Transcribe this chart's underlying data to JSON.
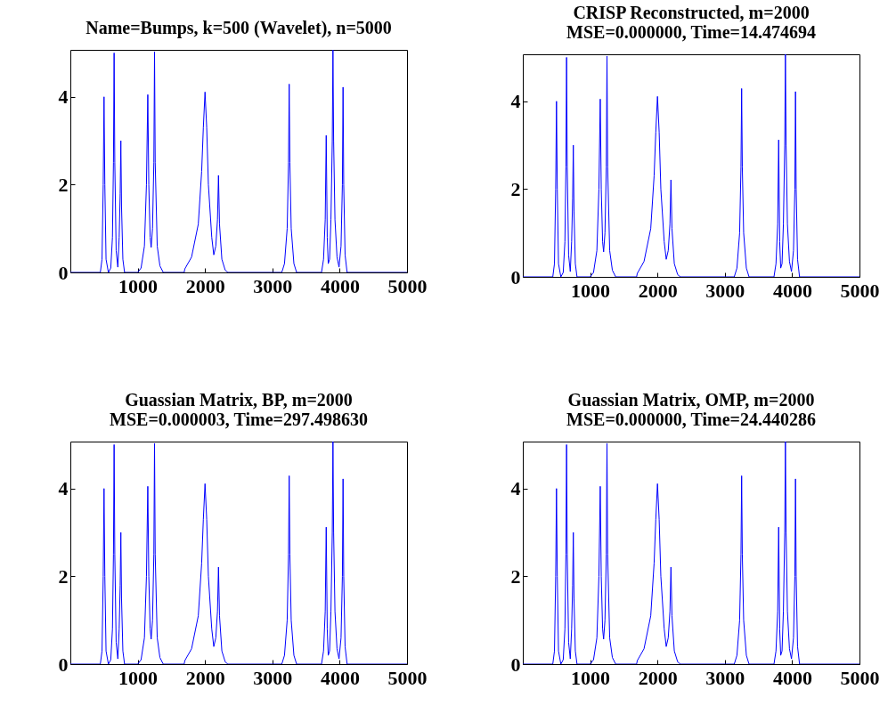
{
  "chart_data": [
    {
      "type": "line",
      "title": "Name=Bumps, k=500 (Wavelet), n=5000",
      "xlim": [
        0,
        5000
      ],
      "xticks": [
        1000,
        2000,
        3000,
        4000,
        5000
      ],
      "ylim": [
        0,
        5.07
      ],
      "yticks": [
        0,
        2,
        4
      ],
      "grid": false,
      "x": [
        0,
        445,
        470,
        488,
        500,
        512,
        530,
        565,
        600,
        625,
        640,
        650,
        660,
        680,
        705,
        725,
        740,
        750,
        760,
        780,
        805,
        1000,
        1050,
        1100,
        1130,
        1150,
        1165,
        1185,
        1200,
        1220,
        1240,
        1250,
        1260,
        1290,
        1330,
        1380,
        1690,
        1700,
        1800,
        1900,
        1950,
        1975,
        2000,
        2025,
        2050,
        2100,
        2130,
        2160,
        2185,
        2200,
        2215,
        2250,
        2300,
        2340,
        3140,
        3180,
        3220,
        3240,
        3250,
        3260,
        3280,
        3320,
        3360,
        3730,
        3760,
        3785,
        3800,
        3815,
        3830,
        3850,
        3870,
        3890,
        3900,
        3910,
        3930,
        3960,
        3990,
        4020,
        4040,
        4050,
        4060,
        4080,
        4110,
        5000
      ],
      "series": [
        {
          "color": "#0000ff",
          "values": [
            0,
            0,
            0.3,
            2.0,
            4.0,
            2.0,
            0.3,
            0,
            0.1,
            0.8,
            2.5,
            5.0,
            2.5,
            0.5,
            0.12,
            0.8,
            1.8,
            3.0,
            1.5,
            0.3,
            0,
            0,
            0.1,
            0.6,
            2.0,
            4.05,
            2.0,
            0.8,
            0.57,
            1.0,
            2.5,
            5.03,
            2.5,
            0.6,
            0.15,
            0,
            0,
            0.08,
            0.35,
            1.1,
            2.3,
            3.3,
            4.11,
            3.3,
            2.0,
            0.8,
            0.4,
            0.6,
            1.2,
            2.21,
            1.1,
            0.3,
            0.05,
            0,
            0,
            0.2,
            1.0,
            2.5,
            4.29,
            2.5,
            1.0,
            0.2,
            0,
            0,
            0.3,
            1.2,
            3.12,
            0.8,
            0.2,
            0.3,
            1.2,
            3.0,
            5.07,
            3.0,
            1.2,
            0.35,
            0.12,
            0.6,
            2.0,
            4.22,
            2.0,
            0.4,
            0,
            0
          ]
        }
      ]
    },
    {
      "type": "line",
      "title": "CRISP Reconstructed, m=2000",
      "subtitle": "MSE=0.000000, Time=14.474694",
      "xlim": [
        0,
        5000
      ],
      "xticks": [
        1000,
        2000,
        3000,
        4000,
        5000
      ],
      "ylim": [
        0,
        5.07
      ],
      "yticks": [
        0,
        2,
        4
      ],
      "grid": false,
      "x": [
        0,
        445,
        470,
        488,
        500,
        512,
        530,
        565,
        600,
        625,
        640,
        650,
        660,
        680,
        705,
        725,
        740,
        750,
        760,
        780,
        805,
        1000,
        1050,
        1100,
        1130,
        1150,
        1165,
        1185,
        1200,
        1220,
        1240,
        1250,
        1260,
        1290,
        1330,
        1380,
        1690,
        1700,
        1800,
        1900,
        1950,
        1975,
        2000,
        2025,
        2050,
        2100,
        2130,
        2160,
        2185,
        2200,
        2215,
        2250,
        2300,
        2340,
        3140,
        3180,
        3220,
        3240,
        3250,
        3260,
        3280,
        3320,
        3360,
        3730,
        3760,
        3785,
        3800,
        3815,
        3830,
        3850,
        3870,
        3890,
        3900,
        3910,
        3930,
        3960,
        3990,
        4020,
        4040,
        4050,
        4060,
        4080,
        4110,
        5000
      ],
      "series": [
        {
          "color": "#0000ff",
          "values": [
            0,
            0,
            0.3,
            2.0,
            4.0,
            2.0,
            0.3,
            0,
            0.1,
            0.8,
            2.5,
            5.0,
            2.5,
            0.5,
            0.12,
            0.8,
            1.8,
            3.0,
            1.5,
            0.3,
            0,
            0,
            0.1,
            0.6,
            2.0,
            4.05,
            2.0,
            0.8,
            0.57,
            1.0,
            2.5,
            5.03,
            2.5,
            0.6,
            0.15,
            0,
            0,
            0.08,
            0.35,
            1.1,
            2.3,
            3.3,
            4.11,
            3.3,
            2.0,
            0.8,
            0.4,
            0.6,
            1.2,
            2.21,
            1.1,
            0.3,
            0.05,
            0,
            0,
            0.2,
            1.0,
            2.5,
            4.29,
            2.5,
            1.0,
            0.2,
            0,
            0,
            0.3,
            1.2,
            3.12,
            0.8,
            0.2,
            0.3,
            1.2,
            3.0,
            5.07,
            3.0,
            1.2,
            0.35,
            0.12,
            0.6,
            2.0,
            4.22,
            2.0,
            0.4,
            0,
            0
          ]
        }
      ]
    },
    {
      "type": "line",
      "title": "Guassian Matrix, BP, m=2000",
      "subtitle": "MSE=0.000003, Time=297.498630",
      "xlim": [
        0,
        5000
      ],
      "xticks": [
        1000,
        2000,
        3000,
        4000,
        5000
      ],
      "ylim": [
        0,
        5.07
      ],
      "yticks": [
        0,
        2,
        4
      ],
      "grid": false,
      "x": [
        0,
        445,
        470,
        488,
        500,
        512,
        530,
        565,
        600,
        625,
        640,
        650,
        660,
        680,
        705,
        725,
        740,
        750,
        760,
        780,
        805,
        1000,
        1050,
        1100,
        1130,
        1150,
        1165,
        1185,
        1200,
        1220,
        1240,
        1250,
        1260,
        1290,
        1330,
        1380,
        1690,
        1700,
        1800,
        1900,
        1950,
        1975,
        2000,
        2025,
        2050,
        2100,
        2130,
        2160,
        2185,
        2200,
        2215,
        2250,
        2300,
        2340,
        3140,
        3180,
        3220,
        3240,
        3250,
        3260,
        3280,
        3320,
        3360,
        3730,
        3760,
        3785,
        3800,
        3815,
        3830,
        3850,
        3870,
        3890,
        3900,
        3910,
        3930,
        3960,
        3990,
        4020,
        4040,
        4050,
        4060,
        4080,
        4110,
        5000
      ],
      "series": [
        {
          "color": "#0000ff",
          "values": [
            0,
            0,
            0.3,
            2.0,
            4.0,
            2.0,
            0.3,
            0,
            0.1,
            0.8,
            2.5,
            5.0,
            2.5,
            0.5,
            0.12,
            0.8,
            1.8,
            3.0,
            1.5,
            0.3,
            0,
            0,
            0.1,
            0.6,
            2.0,
            4.05,
            2.0,
            0.8,
            0.57,
            1.0,
            2.5,
            5.03,
            2.5,
            0.6,
            0.15,
            0,
            0,
            0.08,
            0.35,
            1.1,
            2.3,
            3.3,
            4.11,
            3.3,
            2.0,
            0.8,
            0.4,
            0.6,
            1.2,
            2.21,
            1.1,
            0.3,
            0.05,
            0,
            0,
            0.2,
            1.0,
            2.5,
            4.29,
            2.5,
            1.0,
            0.2,
            0,
            0,
            0.3,
            1.2,
            3.12,
            0.8,
            0.2,
            0.3,
            1.2,
            3.0,
            5.07,
            3.0,
            1.2,
            0.35,
            0.12,
            0.6,
            2.0,
            4.22,
            2.0,
            0.4,
            0,
            0
          ]
        }
      ]
    },
    {
      "type": "line",
      "title": "Guassian Matrix, OMP, m=2000",
      "subtitle": "MSE=0.000000, Time=24.440286",
      "xlim": [
        0,
        5000
      ],
      "xticks": [
        1000,
        2000,
        3000,
        4000,
        5000
      ],
      "ylim": [
        0,
        5.07
      ],
      "yticks": [
        0,
        2,
        4
      ],
      "grid": false,
      "x": [
        0,
        445,
        470,
        488,
        500,
        512,
        530,
        565,
        600,
        625,
        640,
        650,
        660,
        680,
        705,
        725,
        740,
        750,
        760,
        780,
        805,
        1000,
        1050,
        1100,
        1130,
        1150,
        1165,
        1185,
        1200,
        1220,
        1240,
        1250,
        1260,
        1290,
        1330,
        1380,
        1690,
        1700,
        1800,
        1900,
        1950,
        1975,
        2000,
        2025,
        2050,
        2100,
        2130,
        2160,
        2185,
        2200,
        2215,
        2250,
        2300,
        2340,
        3140,
        3180,
        3220,
        3240,
        3250,
        3260,
        3280,
        3320,
        3360,
        3730,
        3760,
        3785,
        3800,
        3815,
        3830,
        3850,
        3870,
        3890,
        3900,
        3910,
        3930,
        3960,
        3990,
        4020,
        4040,
        4050,
        4060,
        4080,
        4110,
        5000
      ],
      "series": [
        {
          "color": "#0000ff",
          "values": [
            0,
            0,
            0.3,
            2.0,
            4.0,
            2.0,
            0.3,
            0,
            0.1,
            0.8,
            2.5,
            5.0,
            2.5,
            0.5,
            0.12,
            0.8,
            1.8,
            3.0,
            1.5,
            0.3,
            0,
            0,
            0.1,
            0.6,
            2.0,
            4.05,
            2.0,
            0.8,
            0.57,
            1.0,
            2.5,
            5.03,
            2.5,
            0.6,
            0.15,
            0,
            0,
            0.08,
            0.35,
            1.1,
            2.3,
            3.3,
            4.11,
            3.3,
            2.0,
            0.8,
            0.4,
            0.6,
            1.2,
            2.21,
            1.1,
            0.3,
            0.05,
            0,
            0,
            0.2,
            1.0,
            2.5,
            4.29,
            2.5,
            1.0,
            0.2,
            0,
            0,
            0.3,
            1.2,
            3.12,
            0.8,
            0.2,
            0.3,
            1.2,
            3.0,
            5.07,
            3.0,
            1.2,
            0.35,
            0.12,
            0.6,
            2.0,
            4.22,
            2.0,
            0.4,
            0,
            0
          ]
        }
      ]
    }
  ]
}
